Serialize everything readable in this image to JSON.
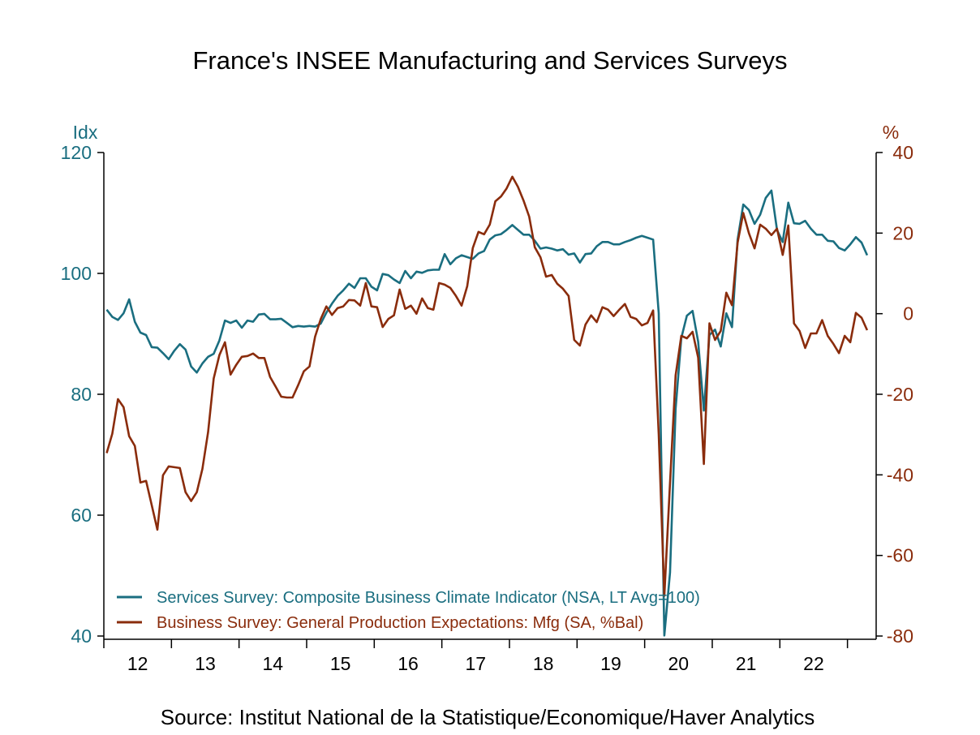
{
  "chart_data": {
    "type": "line",
    "title": "France's INSEE Manufacturing and Services Surveys",
    "source": "Source:  Institut National de la Statistique/Economique/Haver Analytics",
    "x_start": "2012-01",
    "frequency": "monthly",
    "x_tick_labels": [
      "12",
      "13",
      "14",
      "15",
      "16",
      "17",
      "18",
      "19",
      "20",
      "21",
      "22"
    ],
    "left_axis": {
      "label": "Idx",
      "range": [
        40,
        120
      ],
      "ticks": [
        "120",
        "100",
        "80",
        "60",
        "40"
      ],
      "color": "#1a6e80"
    },
    "right_axis": {
      "label": "%",
      "range": [
        -80,
        40
      ],
      "ticks": [
        "40",
        "20",
        "0",
        "-20",
        "-40",
        "-60",
        "-80"
      ],
      "color": "#8a2c0c"
    },
    "legend_position": "bottom-left",
    "grid": false,
    "series": [
      {
        "name": "Services Survey: Composite Business Climate Indicator (NSA, LT Avg=100)",
        "axis": "left",
        "color": "#1a6e80",
        "values": [
          94.0,
          92.8,
          92.3,
          93.4,
          95.7,
          92.0,
          90.2,
          89.8,
          87.8,
          87.7,
          86.8,
          85.8,
          87.2,
          88.3,
          87.4,
          84.6,
          83.6,
          85.1,
          86.2,
          86.7,
          88.9,
          92.2,
          91.8,
          92.2,
          91.0,
          92.2,
          92.0,
          93.2,
          93.3,
          92.4,
          92.4,
          92.5,
          91.8,
          91.1,
          91.3,
          91.2,
          91.3,
          91.2,
          91.7,
          93.5,
          95.0,
          96.3,
          97.2,
          98.3,
          97.6,
          99.2,
          99.2,
          97.8,
          97.2,
          99.9,
          99.7,
          99.0,
          98.4,
          100.4,
          99.2,
          100.3,
          100.1,
          100.5,
          100.6,
          100.6,
          103.2,
          101.5,
          102.5,
          103.0,
          102.7,
          102.4,
          103.3,
          103.7,
          105.6,
          106.3,
          106.5,
          107.2,
          108.0,
          107.2,
          106.4,
          106.4,
          105.4,
          104.1,
          104.3,
          104.1,
          103.8,
          104.0,
          103.1,
          103.3,
          101.8,
          103.2,
          103.3,
          104.5,
          105.2,
          105.2,
          104.8,
          104.8,
          105.2,
          105.5,
          105.9,
          106.2,
          105.9,
          105.6,
          93.4,
          40.1,
          50.5,
          77.6,
          89.3,
          93.0,
          93.8,
          88.7,
          77.3,
          89.8,
          90.7,
          87.9,
          93.4,
          91.1,
          105.6,
          111.4,
          110.5,
          108.2,
          109.7,
          112.5,
          113.7,
          107.2,
          105.2,
          111.7,
          108.3,
          108.2,
          108.7,
          107.4,
          106.4,
          106.4,
          105.4,
          105.3,
          104.2,
          103.8,
          104.8,
          106.0,
          105.1,
          103.0
        ]
      },
      {
        "name": "Business Survey: General Production Expectations: Mfg (SA, %Bal)",
        "axis": "right",
        "color": "#8a2c0c",
        "values": [
          -34.6,
          -29.8,
          -21.2,
          -23.2,
          -30.4,
          -32.8,
          -41.9,
          -41.5,
          -47.5,
          -53.6,
          -40.1,
          -37.9,
          -38.1,
          -38.3,
          -44.3,
          -46.5,
          -44.3,
          -38.5,
          -29.4,
          -16.1,
          -10.3,
          -7.1,
          -15.1,
          -12.7,
          -10.7,
          -10.5,
          -9.9,
          -11.0,
          -11.0,
          -15.7,
          -18.1,
          -20.6,
          -20.8,
          -20.8,
          -17.7,
          -14.3,
          -13.1,
          -5.7,
          -1.3,
          1.8,
          -0.3,
          1.4,
          1.8,
          3.4,
          3.3,
          2.0,
          7.6,
          1.8,
          1.6,
          -3.3,
          -1.3,
          -0.4,
          6.0,
          1.2,
          2.0,
          0.0,
          3.8,
          1.4,
          1.0,
          7.6,
          7.2,
          6.4,
          4.4,
          2.0,
          6.8,
          16.3,
          20.3,
          19.7,
          22.1,
          27.9,
          29.1,
          31.1,
          34.0,
          31.5,
          28.1,
          24.1,
          16.5,
          14.0,
          9.2,
          9.6,
          7.4,
          6.2,
          4.4,
          -6.5,
          -7.9,
          -2.7,
          -0.4,
          -2.1,
          1.6,
          1.0,
          -0.6,
          1.0,
          2.4,
          -0.8,
          -1.3,
          -2.9,
          -2.3,
          0.8,
          -30.0,
          -70.0,
          -42.0,
          -15.3,
          -5.5,
          -6.1,
          -4.5,
          -10.9,
          -37.3,
          -2.4,
          -6.5,
          -4.3,
          5.2,
          2.1,
          17.6,
          25.0,
          20.0,
          16.2,
          22.1,
          21.1,
          19.5,
          21.1,
          14.6,
          21.9,
          -2.4,
          -4.3,
          -8.5,
          -4.9,
          -4.9,
          -1.6,
          -5.5,
          -7.5,
          -9.8,
          -5.5,
          -7.1,
          0.2,
          -1.0,
          -4.1
        ]
      }
    ]
  }
}
